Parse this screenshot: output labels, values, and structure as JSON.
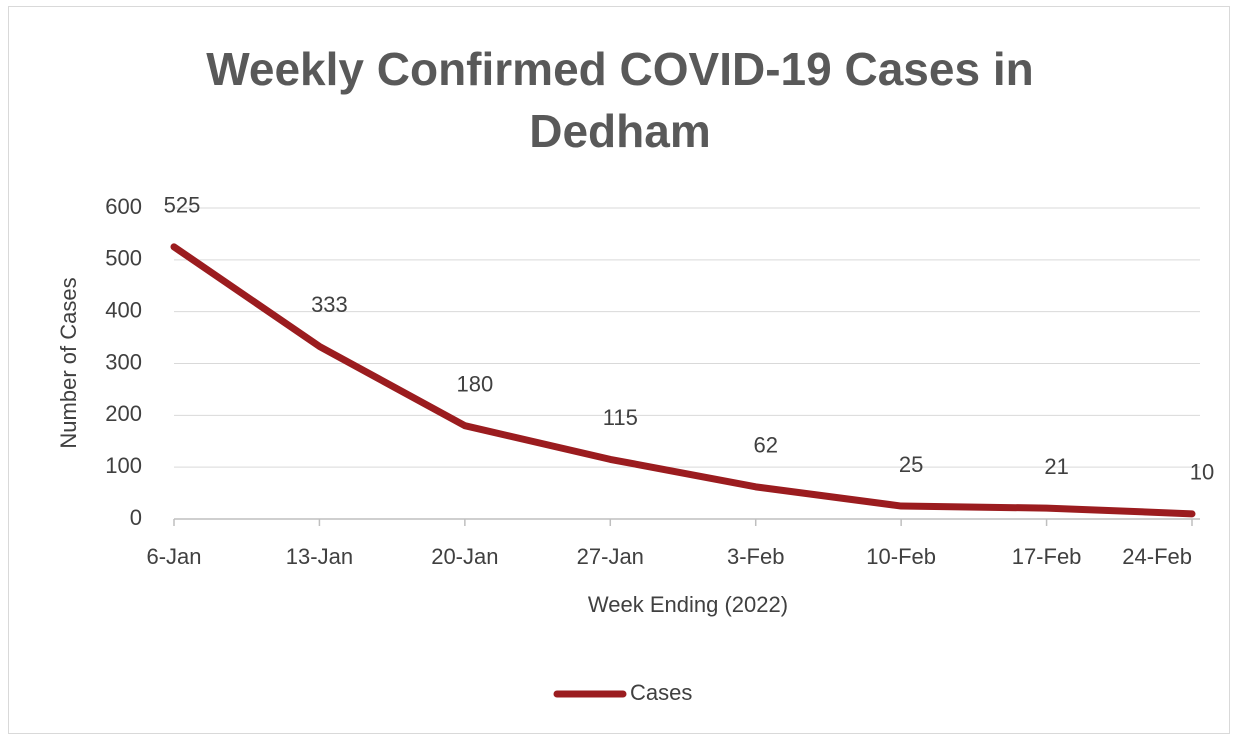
{
  "chart_data": {
    "type": "line",
    "title": "Weekly Confirmed COVID-19 Cases in Dedham",
    "x_label": "Week Ending (2022)",
    "y_label": "Number of Cases",
    "categories": [
      "6-Jan",
      "13-Jan",
      "20-Jan",
      "27-Jan",
      "3-Feb",
      "10-Feb",
      "17-Feb",
      "24-Feb"
    ],
    "series": [
      {
        "name": "Cases",
        "color": "#9b1c1f",
        "values": [
          525,
          333,
          180,
          115,
          62,
          25,
          21,
          10
        ]
      }
    ],
    "ylim": [
      0,
      600
    ],
    "yticks": [
      0,
      100,
      200,
      300,
      400,
      500,
      600
    ],
    "grid": true,
    "legend": "bottom"
  }
}
